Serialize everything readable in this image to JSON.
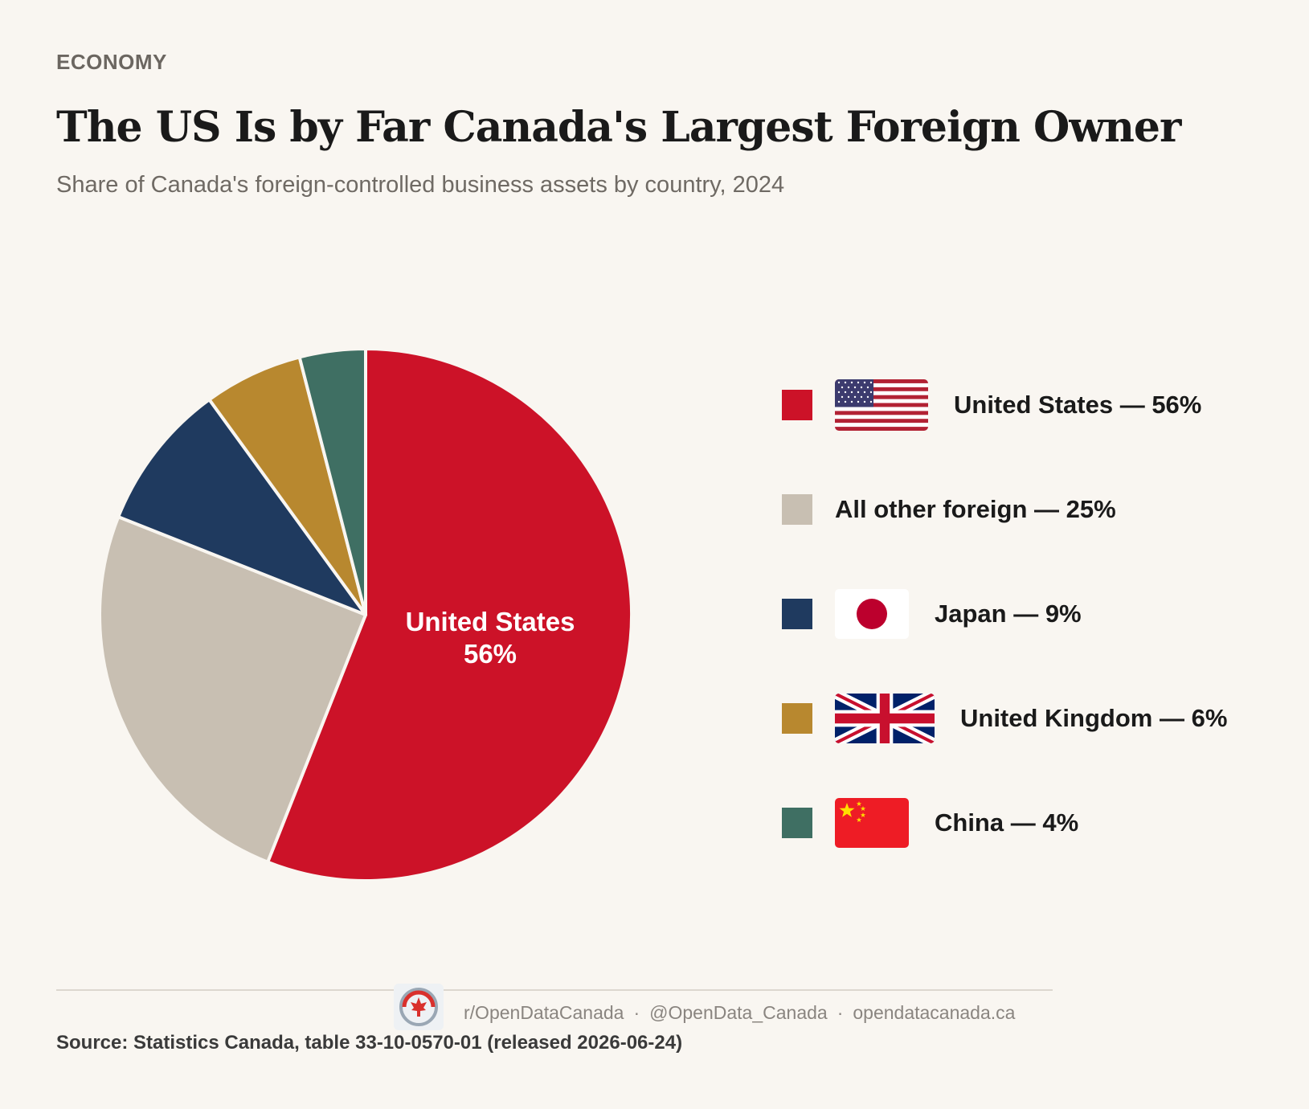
{
  "header": {
    "kicker": "ECONOMY",
    "title": "The US Is by Far Canada's Largest Foreign Owner",
    "subtitle": "Share of Canada's foreign-controlled business assets by country, 2024"
  },
  "chart_data": {
    "type": "pie",
    "categories": [
      "United States",
      "All other foreign",
      "Japan",
      "United Kingdom",
      "China"
    ],
    "values": [
      56,
      25,
      9,
      6,
      4
    ],
    "unit": "%",
    "colors": [
      "#cc1228",
      "#c8bfb2",
      "#1f3a5f",
      "#b8882f",
      "#3f6f63"
    ],
    "slice_label": {
      "name": "United States",
      "value": "56%"
    },
    "legend": [
      {
        "label": "United States — 56%",
        "flag": "us-flag-icon"
      },
      {
        "label": "All other foreign — 25%",
        "flag": ""
      },
      {
        "label": "Japan — 9%",
        "flag": "japan-flag-icon"
      },
      {
        "label": "United Kingdom — 6%",
        "flag": "uk-flag-icon"
      },
      {
        "label": "China — 4%",
        "flag": "china-flag-icon"
      }
    ],
    "legend_placement": "right"
  },
  "footer": {
    "logo_icon": "open-data-canada-logo-icon",
    "reddit": "r/OpenDataCanada",
    "sep1": "·",
    "twitter": "@OpenData_Canada",
    "sep2": "·",
    "website": "opendatacanada.ca",
    "source": "Source: Statistics Canada, table 33-10-0570-01 (released 2026-06-24)"
  }
}
